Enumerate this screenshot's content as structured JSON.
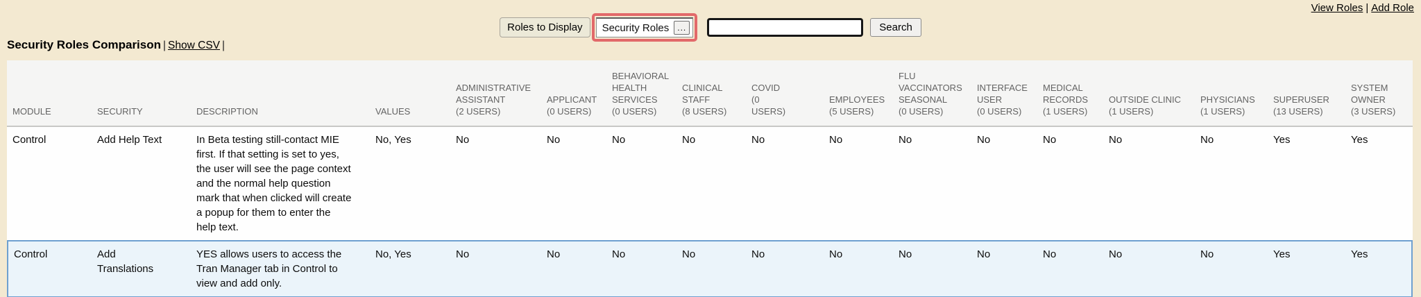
{
  "colors": {
    "page_background": "#f3e9d1",
    "accent_red": "#e2696a",
    "highlight_row_bg": "#ebf4fa",
    "highlight_row_border": "#6fa0d0",
    "header_bg": "#f5f5f4",
    "header_text": "#636363"
  },
  "top_links": {
    "view_roles": "View Roles",
    "separator": "|",
    "add_role": "Add Role"
  },
  "toolbar": {
    "roles_to_display_label": "Roles to Display",
    "roles_dropdown_value": "Security Roles",
    "roles_dropdown_button": "...",
    "search_value": "",
    "search_button_label": "Search"
  },
  "heading": {
    "title": "Security Roles Comparison",
    "sep1": "|",
    "csv_link": "Show CSV",
    "sep2": "|"
  },
  "table": {
    "fixed_columns": [
      "MODULE",
      "SECURITY",
      "DESCRIPTION",
      "VALUES"
    ],
    "role_columns": [
      {
        "name": "ADMINISTRATIVE ASSISTANT",
        "users": "(2 USERS)"
      },
      {
        "name": "APPLICANT",
        "users": "(0 USERS)"
      },
      {
        "name": "BEHAVIORAL HEALTH SERVICES",
        "users": "(0 USERS)"
      },
      {
        "name": "CLINICAL STAFF",
        "users": "(8 USERS)"
      },
      {
        "name": "COVID",
        "users": "(0 USERS)"
      },
      {
        "name": "EMPLOYEES",
        "users": "(5 USERS)"
      },
      {
        "name": "FLU VACCINATORS SEASONAL",
        "users": "(0 USERS)"
      },
      {
        "name": "INTERFACE USER",
        "users": "(0 USERS)"
      },
      {
        "name": "MEDICAL RECORDS",
        "users": "(1 USERS)"
      },
      {
        "name": "OUTSIDE CLINIC",
        "users": "(1 USERS)"
      },
      {
        "name": "PHYSICIANS",
        "users": "(1 USERS)"
      },
      {
        "name": "SUPERUSER",
        "users": "(13 USERS)"
      },
      {
        "name": "SYSTEM OWNER",
        "users": "(3 USERS)"
      }
    ],
    "rows": [
      {
        "module": "Control",
        "security": "Add Help Text",
        "description": "In Beta testing still-contact MIE first. If that setting is set to yes, the user will see the page context and the normal help question mark that when clicked will create a popup for them to enter the help text.",
        "values": "No, Yes",
        "role_values": [
          "No",
          "No",
          "No",
          "No",
          "No",
          "No",
          "No",
          "No",
          "No",
          "No",
          "No",
          "Yes",
          "Yes"
        ],
        "highlighted": false
      },
      {
        "module": "Control",
        "security": "Add Translations",
        "description": "YES allows users to access the Tran Manager tab in Control to view and add only.",
        "values": "No, Yes",
        "role_values": [
          "No",
          "No",
          "No",
          "No",
          "No",
          "No",
          "No",
          "No",
          "No",
          "No",
          "No",
          "Yes",
          "Yes"
        ],
        "highlighted": true
      }
    ]
  }
}
